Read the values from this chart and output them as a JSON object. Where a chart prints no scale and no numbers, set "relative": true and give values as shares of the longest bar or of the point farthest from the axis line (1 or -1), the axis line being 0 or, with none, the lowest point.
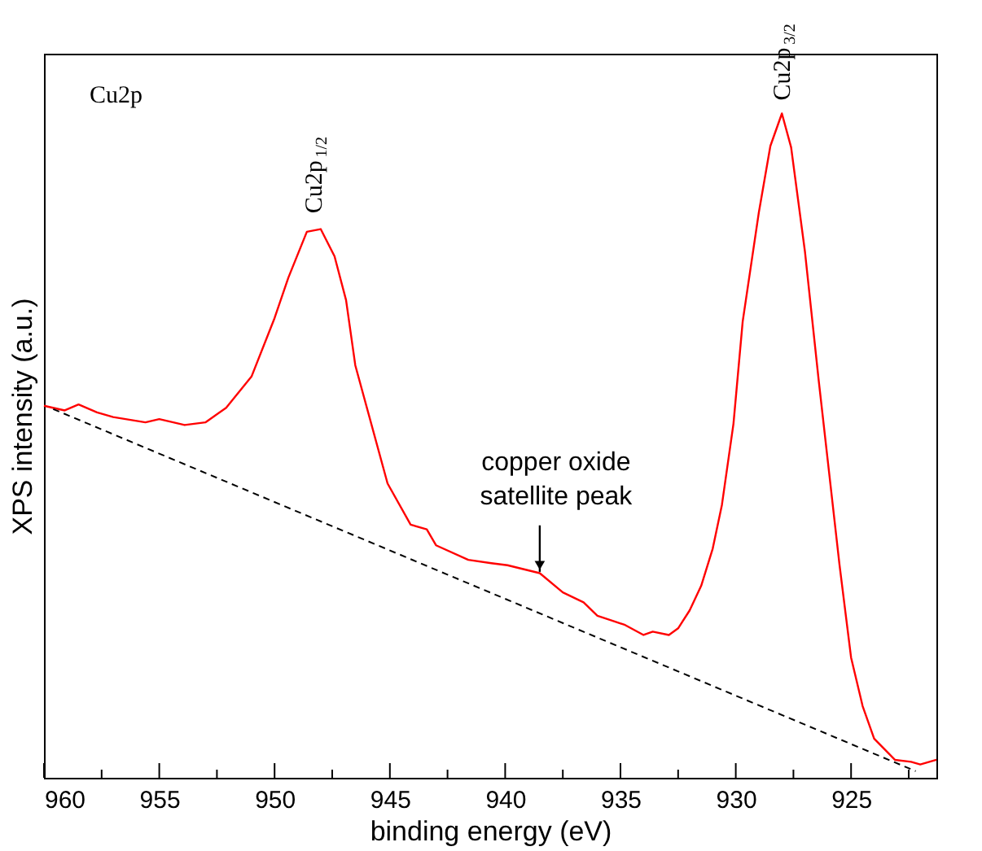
{
  "chart_data": {
    "type": "line",
    "relative": true,
    "xlabel": "binding energy (eV)",
    "ylabel": "XPS intensity (a.u.)",
    "xlim": [
      960,
      921.3
    ],
    "xticks": [
      960,
      {
        "value": 957.5,
        "label": null
      },
      955,
      {
        "value": 952.5,
        "label": null
      },
      950,
      {
        "value": 947.5,
        "label": null
      },
      945,
      {
        "value": 942.5,
        "label": null
      },
      940,
      {
        "value": 937.5,
        "label": null
      },
      935,
      {
        "value": 932.5,
        "label": null
      },
      930,
      {
        "value": 927.5,
        "label": null
      },
      925,
      {
        "value": 922.5,
        "label": null
      }
    ],
    "grid": false,
    "marker": "none",
    "series": [
      {
        "color": "#ff0000",
        "line_style": "solid",
        "x": [
          960.0,
          959.1,
          958.5,
          957.7,
          957.0,
          955.6,
          955.0,
          953.9,
          953.0,
          952.1,
          951.0,
          950.0,
          949.4,
          948.6,
          948.0,
          947.4,
          946.9,
          946.5,
          945.1,
          944.1,
          943.4,
          943.0,
          941.6,
          940.6,
          939.9,
          938.5,
          937.5,
          936.6,
          936.0,
          934.8,
          934.0,
          933.6,
          932.9,
          932.5,
          932.0,
          931.5,
          931.0,
          930.6,
          930.1,
          929.7,
          929.0,
          928.5,
          928.0,
          927.6,
          927.0,
          926.4,
          925.5,
          925.0,
          924.5,
          924.0,
          923.1,
          922.4,
          922.0,
          921.3
        ],
        "values": [
          0.56,
          0.553,
          0.562,
          0.55,
          0.543,
          0.535,
          0.54,
          0.531,
          0.535,
          0.557,
          0.604,
          0.692,
          0.753,
          0.822,
          0.826,
          0.785,
          0.719,
          0.621,
          0.443,
          0.381,
          0.374,
          0.35,
          0.328,
          0.323,
          0.32,
          0.308,
          0.279,
          0.264,
          0.244,
          0.23,
          0.215,
          0.22,
          0.215,
          0.225,
          0.252,
          0.289,
          0.345,
          0.411,
          0.533,
          0.687,
          0.851,
          0.951,
          1.0,
          0.949,
          0.792,
          0.597,
          0.32,
          0.181,
          0.108,
          0.059,
          0.027,
          0.024,
          0.02,
          0.027
        ]
      },
      {
        "type": "line",
        "color": "#000000",
        "line_style": "dashed",
        "x": [
          959.6,
          922.2
        ],
        "values": [
          0.555,
          0.01
        ]
      }
    ],
    "annotations": [
      "Cu2p",
      {
        "text": "Cu2p$_{1/2}$",
        "x": 948.3,
        "y": 0.83
      },
      {
        "text": "Cu2p$_{3/2}$",
        "x": 928.0,
        "y": 1.0
      },
      {
        "text": "copper oxide\nsatellite peak",
        "x": 938.5,
        "y": 0.31
      }
    ]
  }
}
